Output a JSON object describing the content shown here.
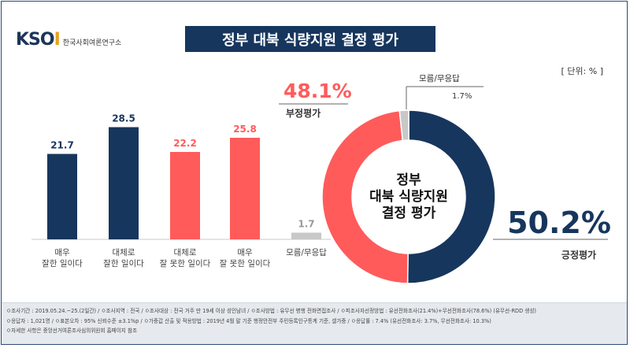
{
  "logo": {
    "mark_prefix": "KSO",
    "mark_suffix": "I",
    "org_name": "한국사회여론연구소"
  },
  "title": "정부 대북 식량지원 결정 평가",
  "unit_label": "[ 단위: % ]",
  "colors": {
    "navy": "#17365d",
    "red": "#ff5b5b",
    "gray": "#c8c8c8"
  },
  "chart_data": [
    {
      "type": "bar",
      "categories": [
        "매우\n잘한 일이다",
        "대체로\n잘한 일이다",
        "대체로\n잘 못한 일이다",
        "매우\n잘 못한 일이다",
        "모름/무응답"
      ],
      "values": [
        21.7,
        28.5,
        22.2,
        25.8,
        1.7
      ],
      "value_labels": [
        "21.7",
        "28.5",
        "22.2",
        "25.8",
        "1.7"
      ],
      "colors": [
        "#17365d",
        "#17365d",
        "#ff5b5b",
        "#ff5b5b",
        "#c8c8c8"
      ],
      "ylim": [
        0,
        30
      ]
    },
    {
      "type": "pie",
      "hole_text": [
        "정부",
        "대북 식량지원",
        "결정 평가"
      ],
      "slices": [
        {
          "label": "긍정평가",
          "value": 50.2,
          "value_label": "50.2%",
          "color": "#17365d"
        },
        {
          "label": "부정평가",
          "value": 48.1,
          "value_label": "48.1%",
          "color": "#ff5b5b"
        },
        {
          "label": "모름/무응답",
          "value": 1.7,
          "value_label": "1.7%",
          "color": "#c8c8c8"
        }
      ]
    }
  ],
  "footer": {
    "line1": "ㅇ조사기간 : 2019.05.24.~25.(2일간) / ㅇ조사지역 : 전국 / ㅇ조사대상 : 전국 거주 만 19세 이상 성인남녀 / ㅇ조사방법 : 유무선 병행 전화면접조사 / ㅇ피조사자선정방법 : 유선전화조사(21.4%)+무선전화조사(78.6%) (유무선-RDD 생성)",
    "line2": "ㅇ응답자 : 1,021명 / ㅇ표본오차 : 95% 신뢰수준 ±3.1%p / ㅇ가중값 산출 및 적용방법 : 2019년 4월 말 기준 행정안전부 주민등록인구통계 기준, 셀가중 / ㅇ응답률 : 7.4% (유선전화조사: 3.7%, 무선전화조사: 10.3%)",
    "line3": "ㅇ자세한 사항은 중앙선거여론조사심의위원회 홈페이지 참조"
  }
}
